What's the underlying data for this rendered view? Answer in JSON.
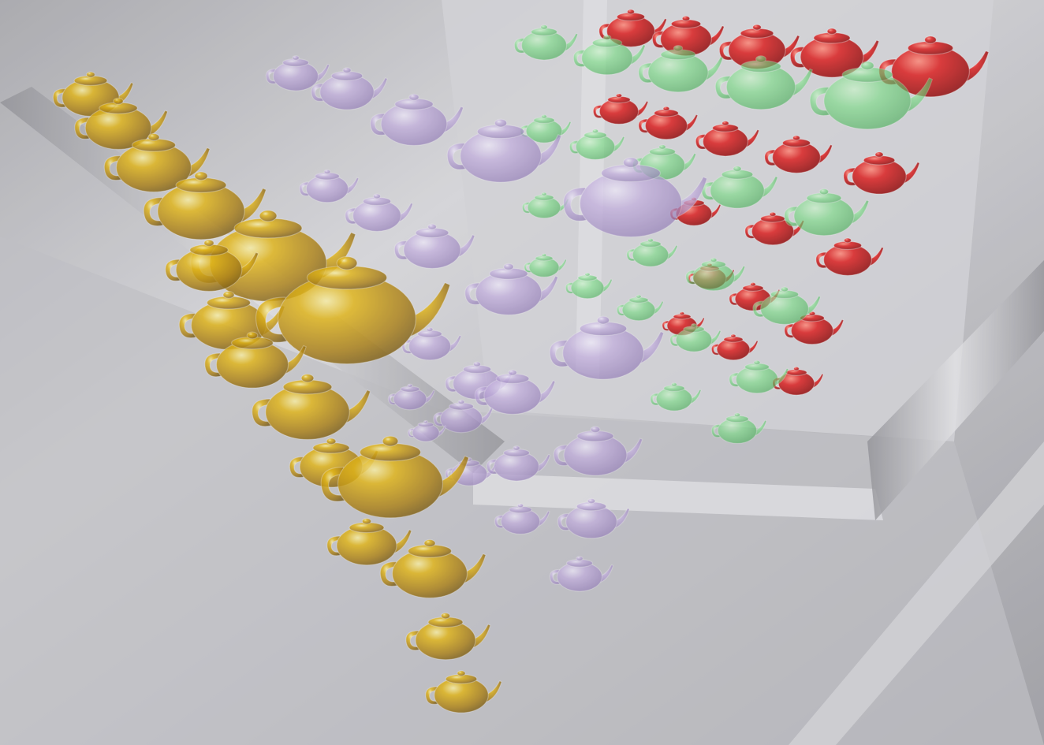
{
  "scene": {
    "description_visible_text": "",
    "material_colors": {
      "gold": "#c99a00",
      "glass_purple": "#b39ad6",
      "glass_green": "#53d45f",
      "red": "#d21818",
      "room": "#c8c8cb"
    },
    "groups": [
      {
        "name": "gold-teapots",
        "material": "gold"
      },
      {
        "name": "purple-glass-teapots",
        "material": "glass_purple"
      },
      {
        "name": "green-glass-teapots",
        "material": "glass_green"
      },
      {
        "name": "red-teapots",
        "material": "red"
      }
    ]
  }
}
